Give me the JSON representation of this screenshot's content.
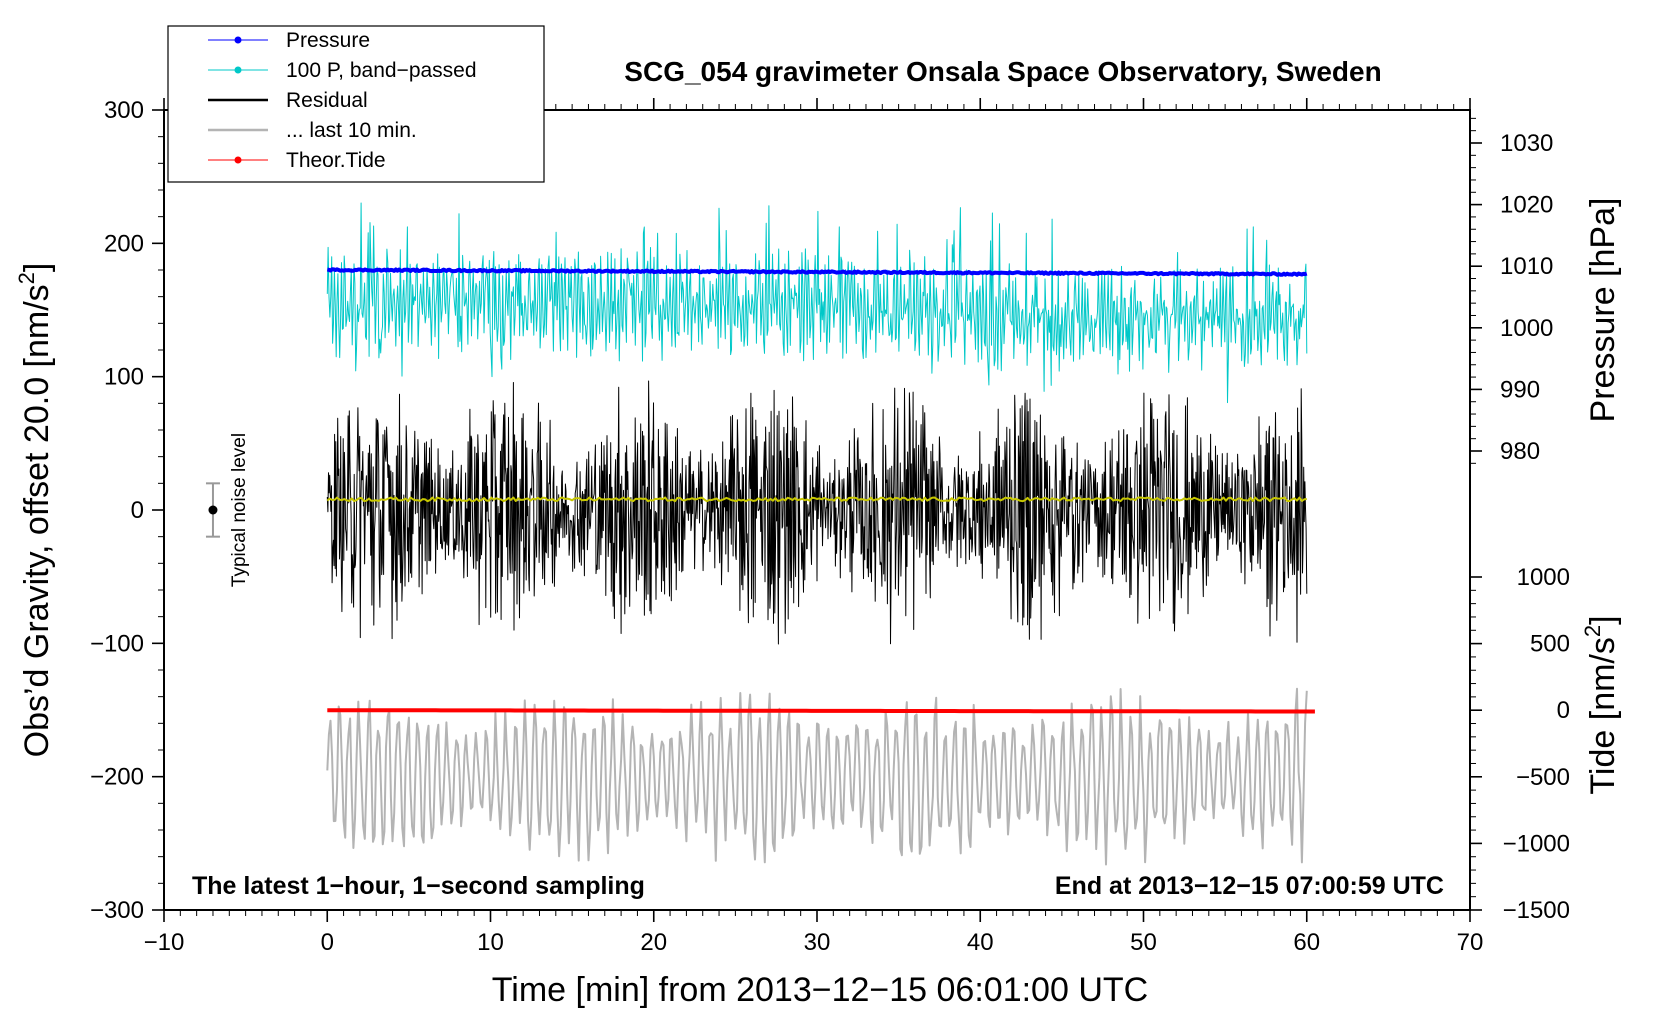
{
  "chart_data": {
    "type": "line",
    "title": "SCG_054 gravimeter Onsala Space Observatory, Sweden",
    "xlabel": "Time [min] from 2013−12−15 06:01:00 UTC",
    "ylabel": "Obs’d Gravity, offset 20.0 [nm/s",
    "ylabel_sup": "2",
    "ylabel_end": "]",
    "y2label": "Pressure [hPa]",
    "y3label": "Tide [nm/s",
    "y3label_sup": "2",
    "y3label_end": "]",
    "xlim": [
      -10,
      70
    ],
    "ylim": [
      -300,
      300
    ],
    "x_ticks": [
      -10,
      0,
      10,
      20,
      30,
      40,
      50,
      60,
      70
    ],
    "x_tick_labels": [
      "−10",
      "0",
      "10",
      "20",
      "30",
      "40",
      "50",
      "60",
      "70"
    ],
    "y_ticks": [
      300,
      200,
      100,
      0,
      -100,
      -200,
      -300
    ],
    "y_tick_labels": [
      "300",
      "200",
      "100",
      "0",
      "−100",
      "−200",
      "−300"
    ],
    "pressure_axis": {
      "ticks": [
        1030,
        1020,
        1010,
        1000,
        990,
        980
      ],
      "tick_labels": [
        "1030",
        "1020",
        "1010",
        "1000",
        "990",
        "980"
      ],
      "range_hpa": [
        975,
        1035
      ]
    },
    "tide_axis": {
      "ticks": [
        1000,
        500,
        0,
        -500,
        -1000,
        -1500
      ],
      "tick_labels": [
        "1000",
        "500",
        "0",
        "−500",
        "−1000",
        "−1500"
      ],
      "range": [
        -1500,
        1000
      ]
    },
    "legend": {
      "position": "top-left",
      "entries": [
        {
          "label": "Pressure",
          "color": "#0000ff",
          "marker": true
        },
        {
          "label": "100 P, band−passed",
          "color": "#00c8c8",
          "marker": true
        },
        {
          "label": "Residual",
          "color": "#000000",
          "marker": false
        },
        {
          "label": "... last 10 min.",
          "color": "#b4b4b4",
          "marker": false
        },
        {
          "label": "Theor.Tide",
          "color": "#ff0000",
          "marker": true
        }
      ]
    },
    "annotations": {
      "bottom_left": "The latest 1−hour, 1−second sampling",
      "bottom_right": "End at 2013−12−15 07:00:59 UTC",
      "noise_label": "Typical noise level"
    },
    "noise_bar": {
      "x": -7,
      "center": 0,
      "half_range": 20
    },
    "series": [
      {
        "name": "Pressure",
        "axis": "pressure",
        "x_range": [
          0,
          60
        ],
        "start": 1009.4,
        "end": 1008.7,
        "color": "#0000ff"
      },
      {
        "name": "100 P, band−passed",
        "axis": "gravity",
        "x_range": [
          0,
          60
        ],
        "mean": 150,
        "amplitude": 35,
        "color": "#00c8c8"
      },
      {
        "name": "Residual",
        "axis": "gravity",
        "x_range": [
          0,
          60
        ],
        "mean": 0,
        "amplitude": 70,
        "color": "#000000"
      },
      {
        "name": "Smoothed residual",
        "axis": "gravity",
        "x_range": [
          0,
          60
        ],
        "mean": 8,
        "amplitude": 2,
        "color": "#c8c800"
      },
      {
        "name": "... last 10 min.",
        "axis": "gravity",
        "x_range": [
          0,
          60
        ],
        "mean": -200,
        "amplitude": 60,
        "color": "#b4b4b4"
      },
      {
        "name": "Theor.Tide",
        "axis": "tide",
        "x_range": [
          0,
          60.5
        ],
        "start": 0,
        "end": -10,
        "color": "#ff0000"
      }
    ]
  }
}
